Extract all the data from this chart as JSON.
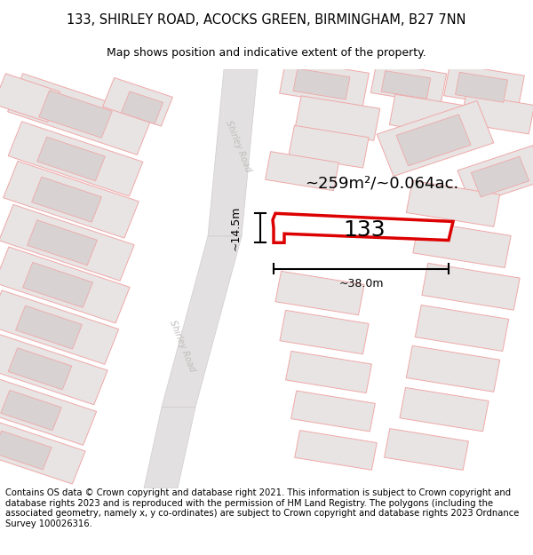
{
  "title_line1": "133, SHIRLEY ROAD, ACOCKS GREEN, BIRMINGHAM, B27 7NN",
  "title_line2": "Map shows position and indicative extent of the property.",
  "footer_text": "Contains OS data © Crown copyright and database right 2021. This information is subject to Crown copyright and database rights 2023 and is reproduced with the permission of HM Land Registry. The polygons (including the associated geometry, namely x, y co-ordinates) are subject to Crown copyright and database rights 2023 Ordnance Survey 100026316.",
  "area_label": "~259m²/~0.064ac.",
  "width_label": "~38.0m",
  "height_label": "~14.5m",
  "number_label": "133",
  "map_bg": "#f7f6f6",
  "road_fill": "#e2e0e0",
  "road_stroke": "#d0cccc",
  "building_stroke": "#f0a8a8",
  "building_fill": "#e8e4e4",
  "building_inner_fill": "#d8d2d2",
  "highlight_stroke": "#dd0000",
  "highlight_fill": "#ffffff",
  "road_label_color": "#c0bcbc",
  "title_fontsize": 10.5,
  "subtitle_fontsize": 9,
  "footer_fontsize": 7.2,
  "number_fontsize": 18,
  "area_fontsize": 13
}
